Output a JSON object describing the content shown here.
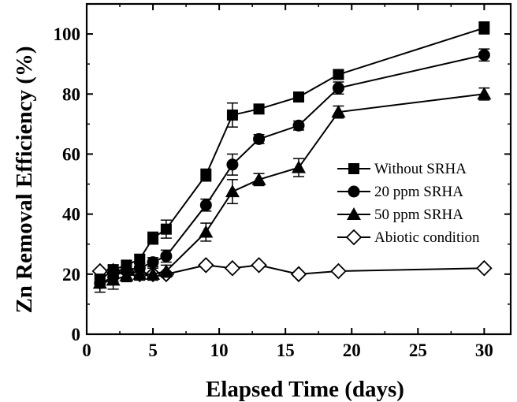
{
  "chart_data": {
    "type": "line",
    "title": "",
    "xlabel": "Elapsed Time (days)",
    "ylabel": "Zn Removal Efficiency (%)",
    "xlim": [
      0,
      32
    ],
    "ylim": [
      0,
      110
    ],
    "xticks": [
      0,
      5,
      10,
      15,
      20,
      25,
      30
    ],
    "yticks": [
      0,
      20,
      40,
      60,
      80,
      100
    ],
    "grid": false,
    "legend_position": "right",
    "series": [
      {
        "name": "Without SRHA",
        "marker": "filled-square",
        "x": [
          1,
          2,
          3,
          4,
          5,
          6,
          9,
          11,
          13,
          16,
          19,
          30
        ],
        "y": [
          18,
          21.5,
          23,
          25,
          32,
          35,
          53,
          73,
          75,
          79,
          86.5,
          102
        ],
        "err": [
          1.5,
          1.5,
          1.5,
          1.5,
          2,
          3,
          2,
          4,
          1.5,
          1.5,
          1.5,
          2
        ]
      },
      {
        "name": "20 ppm SRHA",
        "marker": "filled-circle",
        "x": [
          1,
          2,
          3,
          4,
          5,
          6,
          9,
          11,
          13,
          16,
          19,
          30
        ],
        "y": [
          17,
          19,
          21.5,
          22,
          24,
          26,
          43,
          56.5,
          65,
          69.5,
          82,
          93
        ],
        "err": [
          1.5,
          1.5,
          1.5,
          1.5,
          1.5,
          2,
          2,
          3.5,
          1.5,
          1.5,
          2,
          2
        ]
      },
      {
        "name": "50 ppm SRHA",
        "marker": "filled-triangle",
        "x": [
          1,
          2,
          3,
          4,
          5,
          6,
          9,
          11,
          13,
          16,
          19,
          30
        ],
        "y": [
          17,
          18,
          19.5,
          20,
          20,
          21,
          34,
          47.5,
          51.5,
          55.5,
          74,
          80
        ],
        "err": [
          3,
          3,
          2,
          2,
          2,
          2,
          3,
          4,
          2,
          3,
          2,
          2
        ]
      },
      {
        "name": "Abiotic condition",
        "marker": "open-diamond",
        "x": [
          1,
          2,
          3,
          4,
          5,
          6,
          9,
          11,
          13,
          16,
          19,
          30
        ],
        "y": [
          21,
          21,
          21,
          20,
          20,
          20,
          23,
          22,
          23,
          20,
          21,
          22
        ],
        "err": [
          0,
          0,
          0,
          0,
          0,
          0,
          0,
          0,
          0,
          0,
          0,
          0
        ]
      }
    ]
  }
}
